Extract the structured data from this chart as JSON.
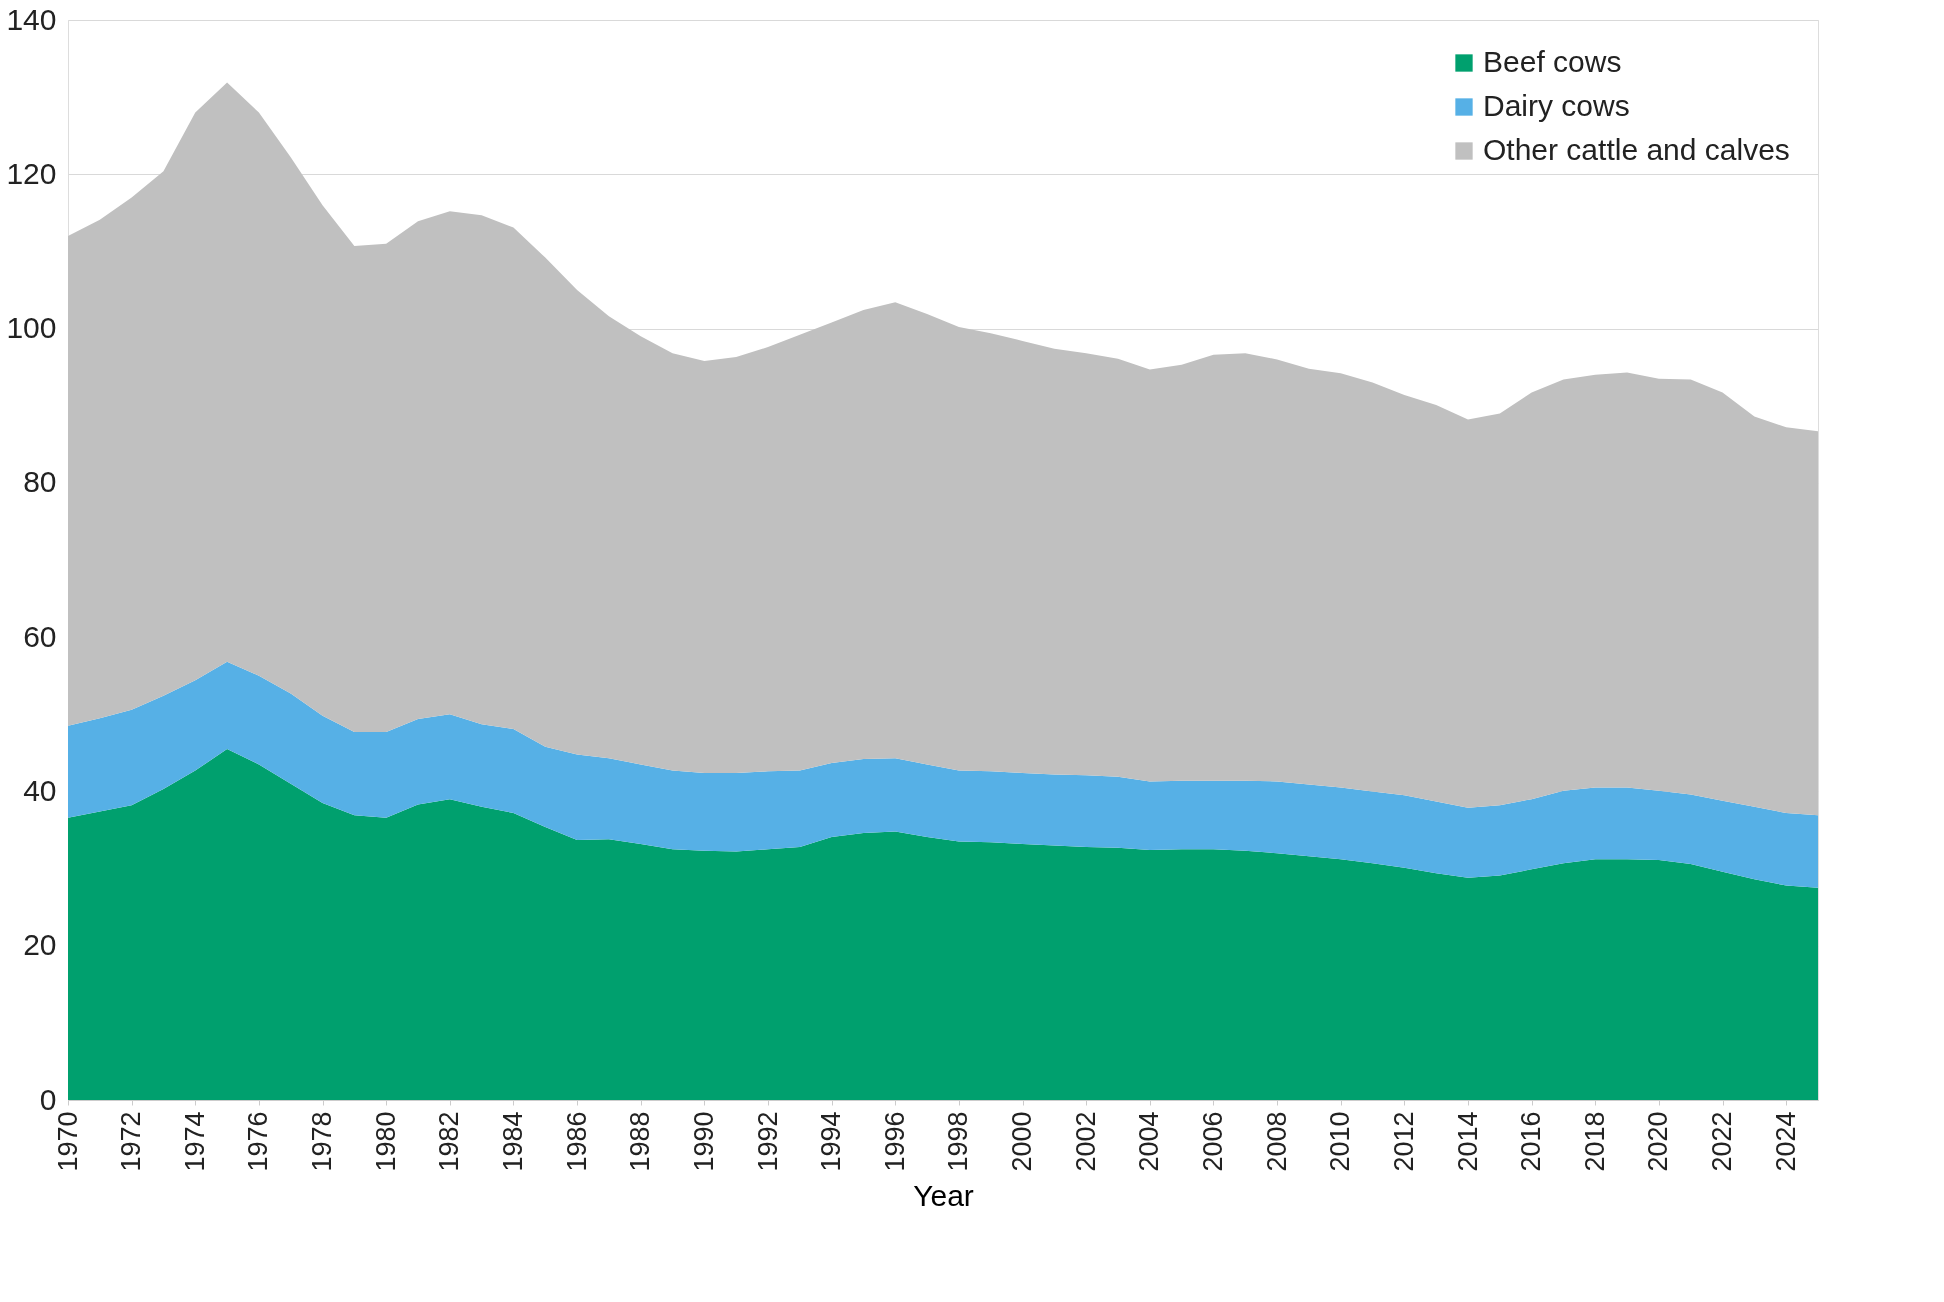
{
  "chart_data": {
    "type": "area",
    "stacked": true,
    "xlabel": "Year",
    "x": [
      1970,
      1971,
      1972,
      1973,
      1974,
      1975,
      1976,
      1977,
      1978,
      1979,
      1980,
      1981,
      1982,
      1983,
      1984,
      1985,
      1986,
      1987,
      1988,
      1989,
      1990,
      1991,
      1992,
      1993,
      1994,
      1995,
      1996,
      1997,
      1998,
      1999,
      2000,
      2001,
      2002,
      2003,
      2004,
      2005,
      2006,
      2007,
      2008,
      2009,
      2010,
      2011,
      2012,
      2013,
      2014,
      2015,
      2016,
      2017,
      2018,
      2019,
      2020,
      2021,
      2022,
      2023,
      2024,
      2025
    ],
    "series": [
      {
        "name": "Beef cows",
        "color": "#00a06e",
        "values": [
          36.6,
          37.4,
          38.2,
          40.3,
          42.7,
          45.5,
          43.5,
          41.0,
          38.5,
          36.9,
          36.6,
          38.3,
          39.0,
          38.0,
          37.2,
          35.4,
          33.7,
          33.8,
          33.2,
          32.5,
          32.3,
          32.2,
          32.5,
          32.8,
          34.1,
          34.6,
          34.8,
          34.1,
          33.5,
          33.4,
          33.2,
          33.0,
          32.8,
          32.7,
          32.4,
          32.5,
          32.5,
          32.3,
          32.0,
          31.6,
          31.2,
          30.7,
          30.1,
          29.4,
          28.8,
          29.1,
          29.9,
          30.7,
          31.2,
          31.2,
          31.1,
          30.6,
          29.6,
          28.6,
          27.8,
          27.5
        ]
      },
      {
        "name": "Dairy cows",
        "color": "#56b0e6",
        "values": [
          11.9,
          12.1,
          12.4,
          12.1,
          11.7,
          11.3,
          11.5,
          11.7,
          11.3,
          10.8,
          11.1,
          11.1,
          11.0,
          10.7,
          10.9,
          10.4,
          11.1,
          10.5,
          10.3,
          10.2,
          10.1,
          10.2,
          10.1,
          9.9,
          9.6,
          9.6,
          9.5,
          9.4,
          9.2,
          9.2,
          9.2,
          9.2,
          9.3,
          9.2,
          8.9,
          8.9,
          8.9,
          9.1,
          9.3,
          9.3,
          9.3,
          9.3,
          9.4,
          9.3,
          9.1,
          9.1,
          9.1,
          9.4,
          9.3,
          9.3,
          9.0,
          9.0,
          9.2,
          9.4,
          9.4,
          9.4
        ]
      },
      {
        "name": "Other cattle and calves",
        "color": "#c0c0c0",
        "values": [
          63.5,
          64.6,
          66.4,
          68.0,
          73.6,
          75.1,
          73.0,
          69.5,
          66.2,
          63.0,
          63.3,
          64.5,
          65.2,
          66.0,
          65.0,
          63.4,
          60.2,
          57.3,
          55.5,
          54.1,
          53.4,
          53.9,
          55.0,
          56.5,
          57.1,
          58.2,
          59.1,
          58.4,
          57.5,
          56.8,
          56.0,
          55.2,
          54.7,
          54.2,
          53.4,
          53.9,
          55.2,
          55.4,
          54.7,
          53.9,
          53.7,
          53.0,
          51.9,
          51.4,
          50.3,
          50.8,
          52.7,
          53.3,
          53.5,
          53.8,
          53.4,
          53.8,
          52.9,
          50.6,
          50.0,
          49.8
        ]
      }
    ],
    "xlim": [
      1970,
      2025
    ],
    "xticks": [
      1970,
      1972,
      1974,
      1976,
      1978,
      1980,
      1982,
      1984,
      1986,
      1988,
      1990,
      1992,
      1994,
      1996,
      1998,
      2000,
      2002,
      2004,
      2006,
      2008,
      2010,
      2012,
      2014,
      2016,
      2018,
      2020,
      2022,
      2024
    ],
    "ylim": [
      0,
      140
    ],
    "yticks": [
      0,
      20,
      40,
      60,
      80,
      100,
      120,
      140
    ],
    "grid": "y",
    "legend": "top right"
  }
}
